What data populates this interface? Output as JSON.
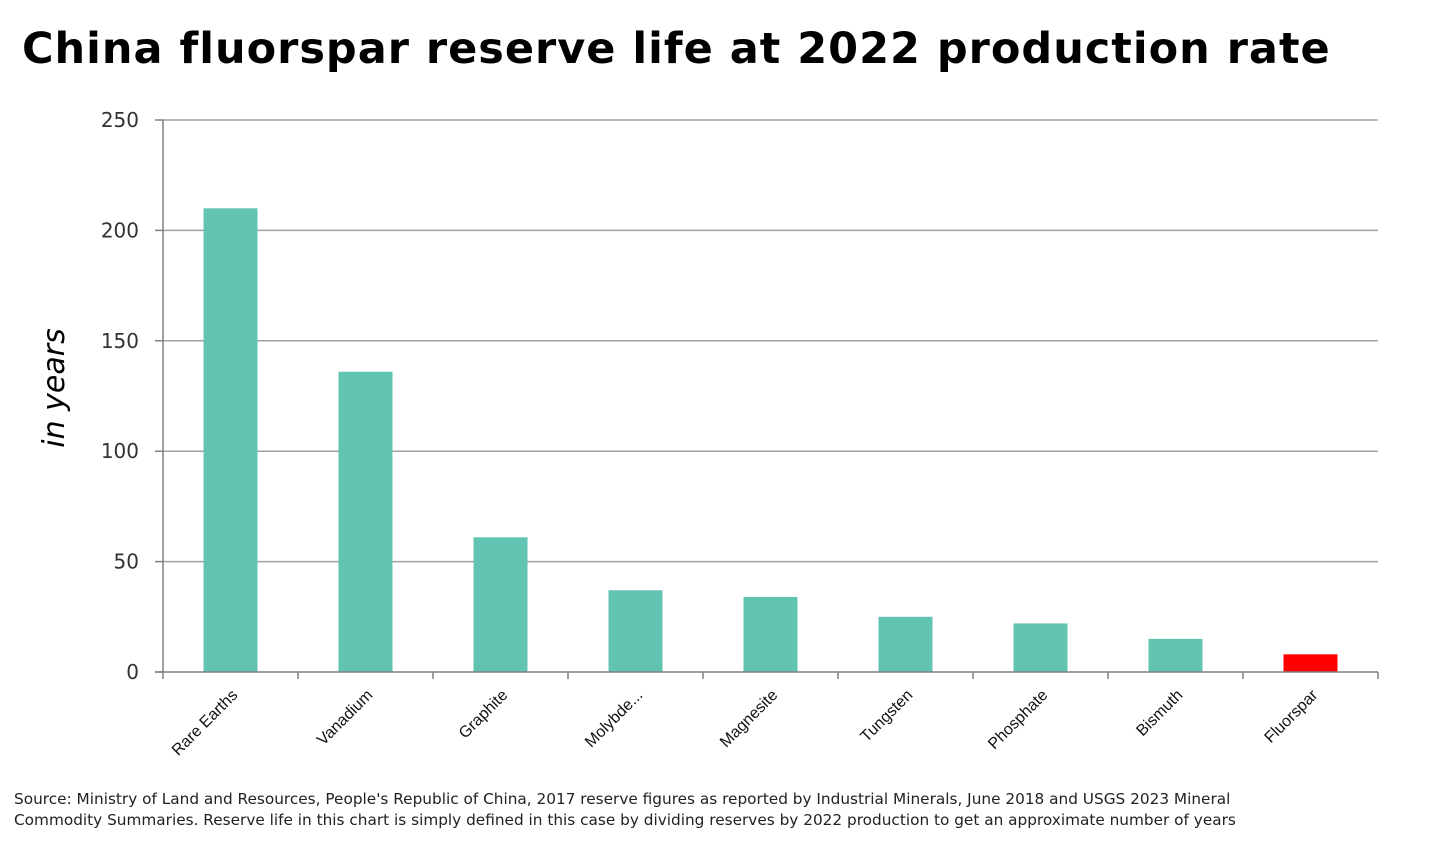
{
  "chart_data": {
    "type": "bar",
    "title": "China fluorspar reserve life at 2022 production rate",
    "xlabel": "",
    "ylabel": "in years",
    "ylim": [
      0,
      250
    ],
    "yticks": [
      0,
      50,
      100,
      150,
      200,
      250
    ],
    "grid": true,
    "categories": [
      "Rare Earths",
      "Vanadium",
      "Graphite",
      "Molybde...",
      "Magnesite",
      "Tungsten",
      "Phosphate",
      "Bismuth",
      "Fluorspar"
    ],
    "values": [
      210,
      136,
      61,
      37,
      34,
      25,
      22,
      15,
      8
    ],
    "colors": {
      "default_bar": "#61c3b2",
      "highlight_bar": "#ff0000",
      "grid": "#a0a0a0",
      "axis": "#808080"
    },
    "highlight_category": "Fluorspar"
  },
  "footer": {
    "source_line1": "Source: Ministry of Land and Resources, People's Republic of China, 2017 reserve figures as reported by Industrial Minerals, June 2018 and USGS 2023 Mineral",
    "source_line2": "Commodity Summaries. Reserve life in this chart is simply defined in this case by dividing reserves by 2022 production to get an approximate number of years"
  }
}
